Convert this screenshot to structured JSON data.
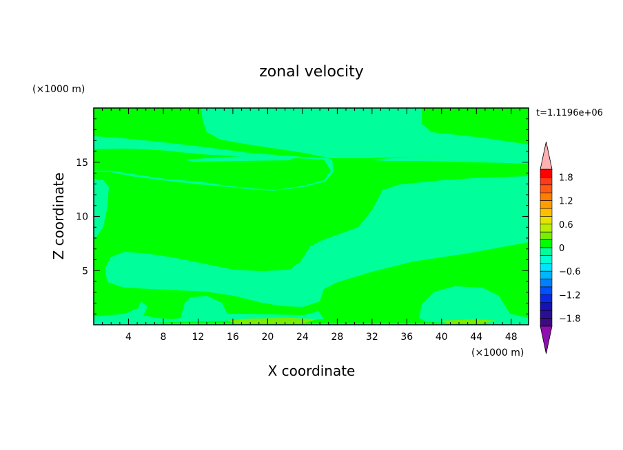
{
  "chart_data": {
    "type": "heatmap",
    "title": "zonal velocity",
    "xlabel": "X coordinate",
    "ylabel": "Z coordinate",
    "x_unit": "(×1000 m)",
    "y_unit": "(×1000 m)",
    "time_label": "t=1.1196e+06",
    "xlim": [
      0,
      50
    ],
    "ylim": [
      0,
      20
    ],
    "x_ticks": [
      "4",
      "8",
      "12",
      "16",
      "20",
      "24",
      "28",
      "32",
      "36",
      "40",
      "44",
      "48"
    ],
    "y_ticks": [
      "5",
      "10",
      "15"
    ],
    "colorbar": {
      "min": -2.0,
      "max": 2.0,
      "step": 0.2,
      "tick_labels": [
        "1.8",
        "1.2",
        "0.6",
        "0",
        "−0.6",
        "−1.2",
        "−1.8"
      ],
      "colors_high_to_low": [
        "#ff0000",
        "#ff3a1a",
        "#ff5a12",
        "#ff7d00",
        "#ff9e00",
        "#ffbf00",
        "#e8e000",
        "#b8ee00",
        "#7aee00",
        "#00ff00",
        "#00ff9a",
        "#00ffd2",
        "#00e4ff",
        "#00b4ff",
        "#0080ff",
        "#0050ff",
        "#0a28e6",
        "#1612b4",
        "#2a0e96",
        "#3c0a82"
      ],
      "over_color": "#ffb0b0",
      "under_color": "#8e0eb0"
    },
    "field_colors": {
      "positive_0_to_0.2": "#00ff00",
      "negative_0_to_-0.2": "#00ff9a",
      "positive_0.2_to_0.4": "#7aee00",
      "negative_-0.2_to_-0.4": "#00ffd2"
    }
  }
}
